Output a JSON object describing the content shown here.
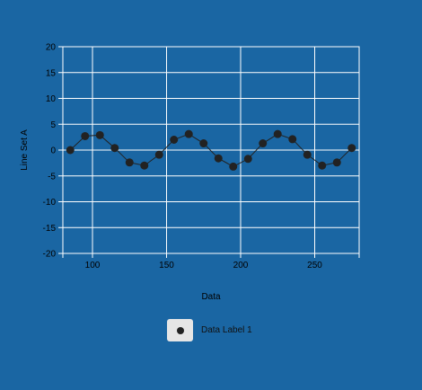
{
  "colors": {
    "background": "#1a66a3",
    "grid": "#ffffff",
    "line": "#222222",
    "marker": "#222222",
    "legend_swatch": "#e6e6e6"
  },
  "chart_data": {
    "type": "line",
    "title": "",
    "xlabel": "Data",
    "ylabel": "Line Set A",
    "xlim": [
      80,
      280
    ],
    "ylim": [
      -20,
      20
    ],
    "x_ticks": [
      100,
      150,
      200,
      250
    ],
    "y_ticks": [
      -20,
      -15,
      -10,
      -5,
      0,
      5,
      10,
      15,
      20
    ],
    "grid": true,
    "legend_position": "bottom",
    "series": [
      {
        "name": "Data Label 1",
        "x": [
          85,
          95,
          105,
          115,
          125,
          135,
          145,
          155,
          165,
          175,
          185,
          195,
          205,
          215,
          225,
          235,
          245,
          255,
          265,
          275
        ],
        "y": [
          0.0,
          2.7,
          2.9,
          0.4,
          -2.4,
          -3.0,
          -0.9,
          2.0,
          3.1,
          1.3,
          -1.6,
          -3.2,
          -1.7,
          1.3,
          3.1,
          2.1,
          -0.9,
          -3.0,
          -2.4,
          0.4
        ]
      }
    ]
  }
}
